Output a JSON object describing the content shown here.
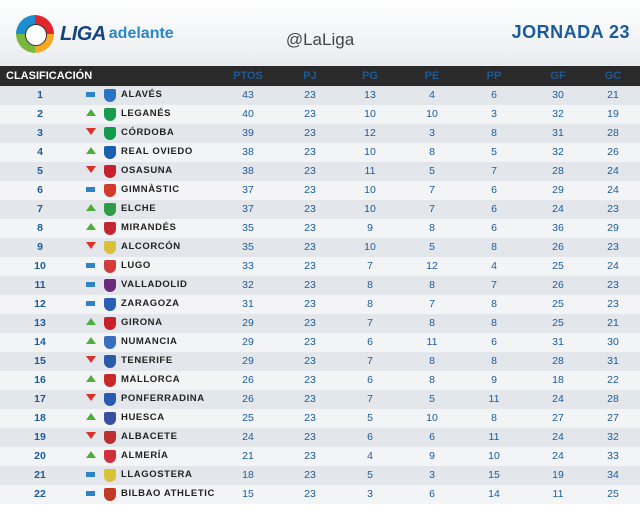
{
  "header": {
    "logo_word": "LIGA",
    "logo_sub": "adelante",
    "handle": "@LaLiga",
    "jornada": "JORNADA 23"
  },
  "columns": {
    "clasificacion": "CLASIFICACIÓN",
    "ptos": "PTOS",
    "pj": "PJ",
    "pg": "PG",
    "pe": "PE",
    "pp": "PP",
    "gf": "GF",
    "gc": "GC"
  },
  "colors": {
    "accent_blue": "#1b5b9c",
    "up": "#4caf3d",
    "down": "#d9312b",
    "same": "#2d83c9"
  },
  "rows": [
    {
      "pos": "1",
      "trend": "same",
      "crest": "#2a74c4",
      "team": "ALAVÉS",
      "ptos": "43",
      "pj": "23",
      "pg": "13",
      "pe": "4",
      "pp": "6",
      "gf": "30",
      "gc": "21"
    },
    {
      "pos": "2",
      "trend": "up",
      "crest": "#1a9a4c",
      "team": "LEGANÉS",
      "ptos": "40",
      "pj": "23",
      "pg": "10",
      "pe": "10",
      "pp": "3",
      "gf": "32",
      "gc": "19"
    },
    {
      "pos": "3",
      "trend": "down",
      "crest": "#159a4b",
      "team": "CÓRDOBA",
      "ptos": "39",
      "pj": "23",
      "pg": "12",
      "pe": "3",
      "pp": "8",
      "gf": "31",
      "gc": "28"
    },
    {
      "pos": "4",
      "trend": "up",
      "crest": "#1a5fb0",
      "team": "REAL OVIEDO",
      "ptos": "38",
      "pj": "23",
      "pg": "10",
      "pe": "8",
      "pp": "5",
      "gf": "32",
      "gc": "26"
    },
    {
      "pos": "5",
      "trend": "down",
      "crest": "#c8202c",
      "team": "OSASUNA",
      "ptos": "38",
      "pj": "23",
      "pg": "11",
      "pe": "5",
      "pp": "7",
      "gf": "28",
      "gc": "24"
    },
    {
      "pos": "6",
      "trend": "same",
      "crest": "#d23a2a",
      "team": "GIMNÀSTIC",
      "ptos": "37",
      "pj": "23",
      "pg": "10",
      "pe": "7",
      "pp": "6",
      "gf": "29",
      "gc": "24"
    },
    {
      "pos": "7",
      "trend": "up",
      "crest": "#2f9c47",
      "team": "ELCHE",
      "ptos": "37",
      "pj": "23",
      "pg": "10",
      "pe": "7",
      "pp": "6",
      "gf": "24",
      "gc": "23"
    },
    {
      "pos": "8",
      "trend": "up",
      "crest": "#c22733",
      "team": "MIRANDÉS",
      "ptos": "35",
      "pj": "23",
      "pg": "9",
      "pe": "8",
      "pp": "6",
      "gf": "36",
      "gc": "29"
    },
    {
      "pos": "9",
      "trend": "down",
      "crest": "#d9c23a",
      "team": "ALCORCÓN",
      "ptos": "35",
      "pj": "23",
      "pg": "10",
      "pe": "5",
      "pp": "8",
      "gf": "26",
      "gc": "23"
    },
    {
      "pos": "10",
      "trend": "same",
      "crest": "#d43c3c",
      "team": "LUGO",
      "ptos": "33",
      "pj": "23",
      "pg": "7",
      "pe": "12",
      "pp": "4",
      "gf": "25",
      "gc": "24"
    },
    {
      "pos": "11",
      "trend": "same",
      "crest": "#6a2a7a",
      "team": "VALLADOLID",
      "ptos": "32",
      "pj": "23",
      "pg": "8",
      "pe": "8",
      "pp": "7",
      "gf": "26",
      "gc": "23"
    },
    {
      "pos": "12",
      "trend": "same",
      "crest": "#2a5fb5",
      "team": "ZARAGOZA",
      "ptos": "31",
      "pj": "23",
      "pg": "8",
      "pe": "7",
      "pp": "8",
      "gf": "25",
      "gc": "23"
    },
    {
      "pos": "13",
      "trend": "up",
      "crest": "#c8202c",
      "team": "GIRONA",
      "ptos": "29",
      "pj": "23",
      "pg": "7",
      "pe": "8",
      "pp": "8",
      "gf": "25",
      "gc": "21"
    },
    {
      "pos": "14",
      "trend": "up",
      "crest": "#3a6fc0",
      "team": "NUMANCIA",
      "ptos": "29",
      "pj": "23",
      "pg": "6",
      "pe": "11",
      "pp": "6",
      "gf": "31",
      "gc": "30"
    },
    {
      "pos": "15",
      "trend": "down",
      "crest": "#2a5aa8",
      "team": "TENERIFE",
      "ptos": "29",
      "pj": "23",
      "pg": "7",
      "pe": "8",
      "pp": "8",
      "gf": "28",
      "gc": "31"
    },
    {
      "pos": "16",
      "trend": "up",
      "crest": "#c82a2a",
      "team": "MALLORCA",
      "ptos": "26",
      "pj": "23",
      "pg": "6",
      "pe": "8",
      "pp": "9",
      "gf": "18",
      "gc": "22"
    },
    {
      "pos": "17",
      "trend": "down",
      "crest": "#2a5ab0",
      "team": "PONFERRADINA",
      "ptos": "26",
      "pj": "23",
      "pg": "7",
      "pe": "5",
      "pp": "11",
      "gf": "24",
      "gc": "28"
    },
    {
      "pos": "18",
      "trend": "up",
      "crest": "#3a4fa0",
      "team": "HUESCA",
      "ptos": "25",
      "pj": "23",
      "pg": "5",
      "pe": "10",
      "pp": "8",
      "gf": "27",
      "gc": "27"
    },
    {
      "pos": "19",
      "trend": "down",
      "crest": "#b83030",
      "team": "ALBACETE",
      "ptos": "24",
      "pj": "23",
      "pg": "6",
      "pe": "6",
      "pp": "11",
      "gf": "24",
      "gc": "32"
    },
    {
      "pos": "20",
      "trend": "up",
      "crest": "#d0303a",
      "team": "ALMERÍA",
      "ptos": "21",
      "pj": "23",
      "pg": "4",
      "pe": "9",
      "pp": "10",
      "gf": "24",
      "gc": "33"
    },
    {
      "pos": "21",
      "trend": "same",
      "crest": "#d9c23a",
      "team": "LLAGOSTERA",
      "ptos": "18",
      "pj": "23",
      "pg": "5",
      "pe": "3",
      "pp": "15",
      "gf": "19",
      "gc": "34"
    },
    {
      "pos": "22",
      "trend": "same",
      "crest": "#c23a2a",
      "team": "BILBAO ATHLETIC",
      "ptos": "15",
      "pj": "23",
      "pg": "3",
      "pe": "6",
      "pp": "14",
      "gf": "11",
      "gc": "25"
    }
  ]
}
